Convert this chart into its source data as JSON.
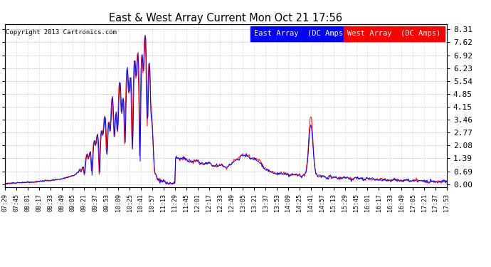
{
  "title": "East & West Array Current Mon Oct 21 17:56",
  "copyright": "Copyright 2013 Cartronics.com",
  "background_color": "#ffffff",
  "plot_bg_color": "#ffffff",
  "grid_color": "#bbbbbb",
  "east_color": "#0000ff",
  "west_color": "#ff0000",
  "east_label": "East Array  (DC Amps)",
  "west_label": "West Array  (DC Amps)",
  "yticks": [
    0.0,
    0.69,
    1.39,
    2.08,
    2.77,
    3.46,
    4.15,
    4.85,
    5.54,
    6.23,
    6.92,
    7.62,
    8.31
  ],
  "ylim": [
    -0.15,
    8.6
  ],
  "xtick_labels": [
    "07:29",
    "07:45",
    "08:01",
    "08:17",
    "08:33",
    "08:49",
    "09:05",
    "09:21",
    "09:37",
    "09:53",
    "10:09",
    "10:25",
    "10:41",
    "10:57",
    "11:13",
    "11:29",
    "11:45",
    "12:01",
    "12:17",
    "12:33",
    "12:49",
    "13:05",
    "13:21",
    "13:37",
    "13:53",
    "14:09",
    "14:25",
    "14:41",
    "14:57",
    "15:13",
    "15:29",
    "15:45",
    "16:01",
    "16:17",
    "16:33",
    "16:49",
    "17:05",
    "17:21",
    "17:37",
    "17:53"
  ]
}
